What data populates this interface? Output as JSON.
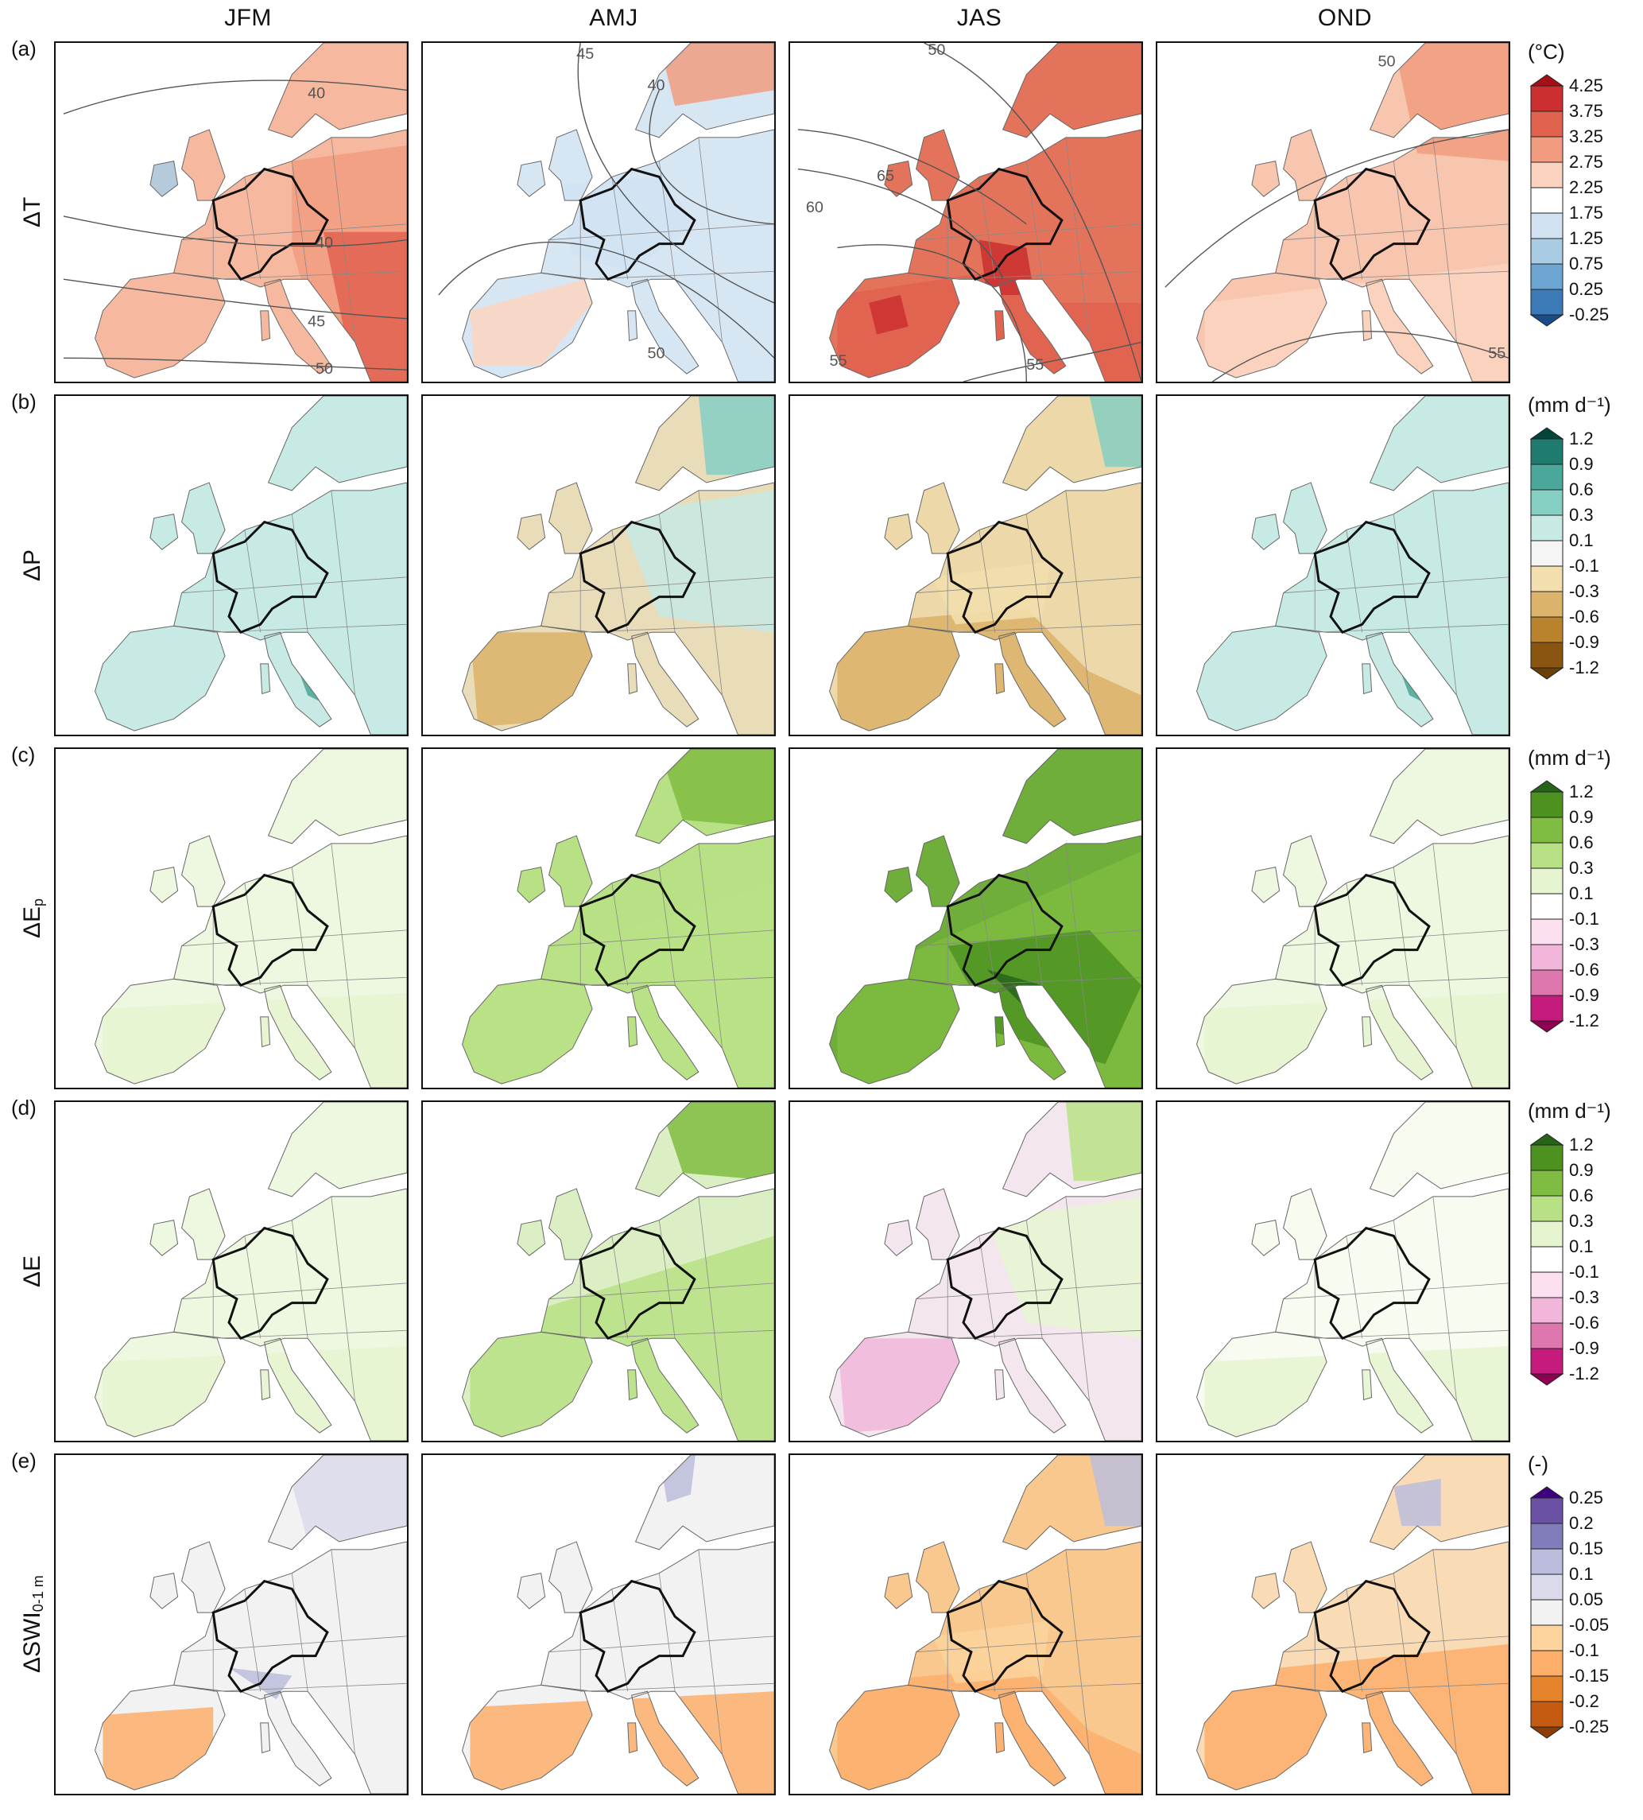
{
  "columns": [
    "JFM",
    "AMJ",
    "JAS",
    "OND"
  ],
  "rows": [
    {
      "letter": "(a)",
      "variable": "ΔT",
      "var_sub": "",
      "unit": "(°C)",
      "ticks": [
        "4.25",
        "3.75",
        "3.25",
        "2.75",
        "2.25",
        "1.75",
        "1.25",
        "0.75",
        "0.25",
        "-0.25"
      ],
      "colors": [
        "#a50f15",
        "#cb2f2f",
        "#e0624f",
        "#f19c7f",
        "#fcd3bf",
        "#ffffff",
        "#d1e2f2",
        "#a9cce4",
        "#6ea6d2",
        "#3d7ab8",
        "#184c8a"
      ],
      "panel_dominant": [
        {
          "fill": "#f6b9a0",
          "isolines": [
            "40",
            "40",
            "45",
            "50"
          ],
          "tone": "warm-east"
        },
        {
          "fill": "#d7e6f3",
          "isolines": [
            "45",
            "40",
            "50"
          ],
          "tone": "cool-center"
        },
        {
          "fill": "#e3735b",
          "isolines": [
            "50",
            "65",
            "60",
            "55",
            "55"
          ],
          "tone": "hot"
        },
        {
          "fill": "#f8c5ae",
          "isolines": [
            "50",
            "55"
          ],
          "tone": "warm"
        }
      ]
    },
    {
      "letter": "(b)",
      "variable": "ΔP",
      "var_sub": "",
      "unit": "(mm d⁻¹)",
      "ticks": [
        "1.2",
        "0.9",
        "0.6",
        "0.3",
        "0.1",
        "-0.1",
        "-0.3",
        "-0.6",
        "-0.9",
        "-1.2"
      ],
      "colors": [
        "#01463b",
        "#1f7b6d",
        "#4aa799",
        "#86cfc3",
        "#c7eae4",
        "#f5f5f5",
        "#f3dfae",
        "#dcb36a",
        "#b9822c",
        "#8a5510",
        "#6b3f07"
      ],
      "panel_dominant": [
        {
          "fill": "#c7eae4",
          "isolines": [],
          "tone": "wet"
        },
        {
          "fill": "#e9dcb9",
          "isolines": [],
          "tone": "mixed"
        },
        {
          "fill": "#ecd8a8",
          "isolines": [],
          "tone": "dry"
        },
        {
          "fill": "#c7eae4",
          "isolines": [],
          "tone": "wet"
        }
      ]
    },
    {
      "letter": "(c)",
      "variable": "ΔE",
      "var_sub": "p",
      "unit": "(mm d⁻¹)",
      "ticks": [
        "1.2",
        "0.9",
        "0.6",
        "0.3",
        "0.1",
        "-0.1",
        "-0.3",
        "-0.6",
        "-0.9",
        "-1.2"
      ],
      "colors": [
        "#276419",
        "#4d9221",
        "#7fbc41",
        "#b8e186",
        "#e6f5d0",
        "#ffffff",
        "#fde0ef",
        "#f1b6da",
        "#de77ae",
        "#c51b7d",
        "#8e0152"
      ],
      "panel_dominant": [
        {
          "fill": "#eef7df",
          "isolines": [],
          "tone": "low"
        },
        {
          "fill": "#b8e186",
          "isolines": [],
          "tone": "mid"
        },
        {
          "fill": "#6fae3a",
          "isolines": [],
          "tone": "high"
        },
        {
          "fill": "#eef7df",
          "isolines": [],
          "tone": "low"
        }
      ]
    },
    {
      "letter": "(d)",
      "variable": "ΔE",
      "var_sub": "",
      "unit": "(mm d⁻¹)",
      "ticks": [
        "1.2",
        "0.9",
        "0.6",
        "0.3",
        "0.1",
        "-0.1",
        "-0.3",
        "-0.6",
        "-0.9",
        "-1.2"
      ],
      "colors": [
        "#276419",
        "#4d9221",
        "#7fbc41",
        "#b8e186",
        "#e6f5d0",
        "#ffffff",
        "#fde0ef",
        "#f1b6da",
        "#de77ae",
        "#c51b7d",
        "#8e0152"
      ],
      "panel_dominant": [
        {
          "fill": "#eef7df",
          "isolines": [],
          "tone": "low"
        },
        {
          "fill": "#dcefc4",
          "isolines": [],
          "tone": "mid"
        },
        {
          "fill": "#f4e6ee",
          "isolines": [],
          "tone": "mixed"
        },
        {
          "fill": "#f7fbf0",
          "isolines": [],
          "tone": "low"
        }
      ]
    },
    {
      "letter": "(e)",
      "variable": "ΔSWI",
      "var_sub": "0-1 m",
      "unit": "(-)",
      "ticks": [
        "0.25",
        "0.2",
        "0.15",
        "0.1",
        "0.05",
        "-0.05",
        "-0.1",
        "-0.15",
        "-0.2",
        "-0.25"
      ],
      "colors": [
        "#3f007d",
        "#6a51a3",
        "#807dba",
        "#bcbddc",
        "#dadaeb",
        "#f2f2f2",
        "#fdd49e",
        "#fdae6b",
        "#e6842c",
        "#c55a11",
        "#8c3d06"
      ],
      "panel_dominant": [
        {
          "fill": "#f2f2f2",
          "isolines": [],
          "tone": "neutral"
        },
        {
          "fill": "#f2f2f2",
          "isolines": [],
          "tone": "neutral-dry-south"
        },
        {
          "fill": "#f8c88e",
          "isolines": [],
          "tone": "dry"
        },
        {
          "fill": "#f9dcb6",
          "isolines": [],
          "tone": "dry-south"
        }
      ]
    }
  ]
}
